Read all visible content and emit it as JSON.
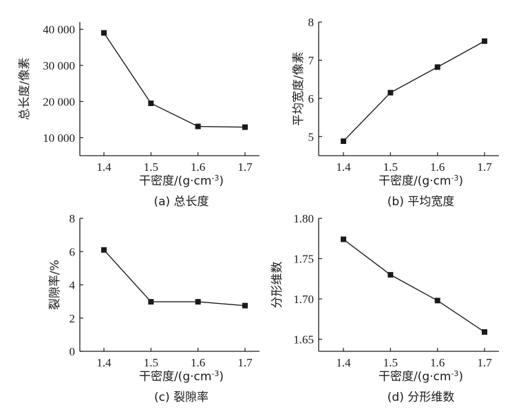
{
  "chart_data": [
    {
      "type": "line",
      "panel": "a",
      "caption": "(a) 总长度",
      "xlabel": "干密度/(g·cm⁻³)",
      "ylabel": "总长度/像素",
      "x": [
        1.4,
        1.5,
        1.6,
        1.7
      ],
      "x_tick_labels": [
        "1.4",
        "1.5",
        "1.6",
        "1.7"
      ],
      "y": [
        39000,
        19500,
        13100,
        12900
      ],
      "ylim": [
        5000,
        42000
      ],
      "y_ticks": [
        10000,
        20000,
        30000,
        40000
      ],
      "y_tick_labels": [
        "10 000",
        "20 000",
        "30 000",
        "40 000"
      ],
      "marker": "square",
      "grid": false
    },
    {
      "type": "line",
      "panel": "b",
      "caption": "(b) 平均宽度",
      "xlabel": "干密度/(g·cm⁻³)",
      "ylabel": "平均宽度/像素",
      "x": [
        1.4,
        1.5,
        1.6,
        1.7
      ],
      "x_tick_labels": [
        "1.4",
        "1.5",
        "1.6",
        "1.7"
      ],
      "y": [
        4.88,
        6.15,
        6.82,
        7.5
      ],
      "ylim": [
        4.5,
        8.0
      ],
      "y_ticks": [
        5,
        6,
        7,
        8
      ],
      "y_tick_labels": [
        "5",
        "6",
        "7",
        "8"
      ],
      "marker": "square",
      "grid": false
    },
    {
      "type": "line",
      "panel": "c",
      "caption": "(c) 裂隙率",
      "xlabel": "干密度/(g·cm⁻³)",
      "ylabel": "裂隙率/%",
      "x": [
        1.4,
        1.5,
        1.6,
        1.7
      ],
      "x_tick_labels": [
        "1.4",
        "1.5",
        "1.6",
        "1.7"
      ],
      "y": [
        6.1,
        2.98,
        2.98,
        2.75
      ],
      "ylim": [
        0,
        8
      ],
      "y_ticks": [
        0,
        2,
        4,
        6,
        8
      ],
      "y_tick_labels": [
        "0",
        "2",
        "4",
        "6",
        "8"
      ],
      "marker": "square",
      "grid": false
    },
    {
      "type": "line",
      "panel": "d",
      "caption": "(d) 分形维数",
      "xlabel": "干密度/(g·cm⁻³)",
      "ylabel": "分形维数",
      "x": [
        1.4,
        1.5,
        1.6,
        1.7
      ],
      "x_tick_labels": [
        "1.4",
        "1.5",
        "1.6",
        "1.7"
      ],
      "y": [
        1.774,
        1.73,
        1.698,
        1.659
      ],
      "ylim": [
        1.635,
        1.8
      ],
      "y_ticks": [
        1.65,
        1.7,
        1.75,
        1.8
      ],
      "y_tick_labels": [
        "1.65",
        "1.70",
        "1.75",
        "1.80"
      ],
      "marker": "square",
      "grid": false
    }
  ],
  "colors": {
    "line": "#1a1a1a",
    "marker": "#1a1a1a",
    "axis": "#1a1a1a"
  }
}
